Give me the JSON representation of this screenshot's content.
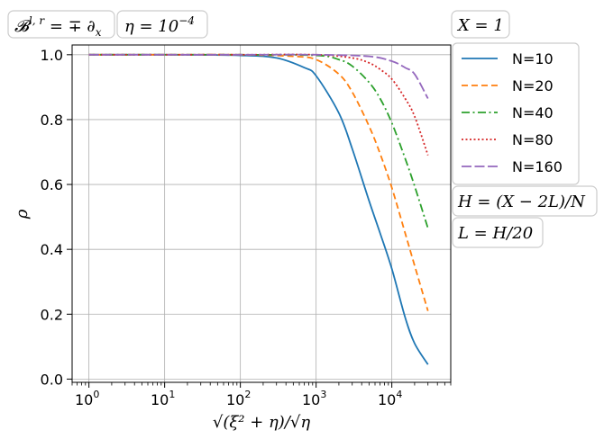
{
  "chart_data": {
    "type": "line",
    "xscale": "log",
    "xlim": [
      0.6,
      60000
    ],
    "ylim": [
      -0.01,
      1.03
    ],
    "grid": true,
    "xlabel": "√(ξ² + η)/√η",
    "ylabel": "ρ",
    "x_ticks": [
      1,
      10,
      100,
      1000,
      10000
    ],
    "x_tick_labels": [
      {
        "base": "10",
        "exp": "0"
      },
      {
        "base": "10",
        "exp": "1"
      },
      {
        "base": "10",
        "exp": "2"
      },
      {
        "base": "10",
        "exp": "3"
      },
      {
        "base": "10",
        "exp": "4"
      }
    ],
    "y_ticks": [
      0.0,
      0.2,
      0.4,
      0.6,
      0.8,
      1.0
    ],
    "y_tick_labels": [
      "0.0",
      "0.2",
      "0.4",
      "0.6",
      "0.8",
      "1.0"
    ],
    "annotations_top": [
      {
        "base": "𝓑",
        "sup": "l, r",
        "rest": " = ∓ ∂",
        "sub": "x"
      },
      {
        "base": "η = 10",
        "sup": "−4"
      }
    ],
    "legend": {
      "placement": "right",
      "header": "X = 1",
      "footer": [
        "H = (X − 2L)/N",
        "L = H/20"
      ]
    },
    "series": [
      {
        "name": "N=10",
        "color": "#1f77b4",
        "dash": "solid",
        "x": [
          1,
          10,
          100,
          300,
          700,
          1000,
          2000,
          3000,
          5000,
          7000,
          10000,
          15000,
          20000,
          30000
        ],
        "y": [
          1.0,
          1.0,
          0.998,
          0.99,
          0.96,
          0.935,
          0.82,
          0.71,
          0.55,
          0.45,
          0.34,
          0.19,
          0.11,
          0.045
        ]
      },
      {
        "name": "N=20",
        "color": "#ff7f0e",
        "dash": "dashed",
        "x": [
          1,
          10,
          100,
          500,
          1000,
          2000,
          3000,
          5000,
          7000,
          10000,
          15000,
          20000,
          30000
        ],
        "y": [
          1.0,
          1.0,
          1.0,
          0.995,
          0.985,
          0.94,
          0.885,
          0.78,
          0.695,
          0.59,
          0.45,
          0.35,
          0.21
        ]
      },
      {
        "name": "N=40",
        "color": "#2ca02c",
        "dash": "dashdot",
        "x": [
          1,
          10,
          100,
          1000,
          2000,
          3000,
          5000,
          7000,
          10000,
          15000,
          20000,
          30000
        ],
        "y": [
          1.0,
          1.0,
          1.0,
          0.998,
          0.985,
          0.965,
          0.915,
          0.865,
          0.79,
          0.68,
          0.595,
          0.465
        ]
      },
      {
        "name": "N=80",
        "color": "#d62728",
        "dash": "dotted",
        "x": [
          1,
          10,
          100,
          1000,
          3000,
          5000,
          7000,
          10000,
          15000,
          20000,
          30000
        ],
        "y": [
          1.0,
          1.0,
          1.0,
          1.0,
          0.99,
          0.975,
          0.955,
          0.925,
          0.865,
          0.81,
          0.69
        ]
      },
      {
        "name": "N=160",
        "color": "#9467bd",
        "dash": "longdash",
        "x": [
          1,
          10,
          100,
          1000,
          5000,
          10000,
          15000,
          20000,
          30000
        ],
        "y": [
          1.0,
          1.0,
          1.0,
          1.0,
          0.995,
          0.98,
          0.96,
          0.94,
          0.865
        ]
      }
    ]
  }
}
